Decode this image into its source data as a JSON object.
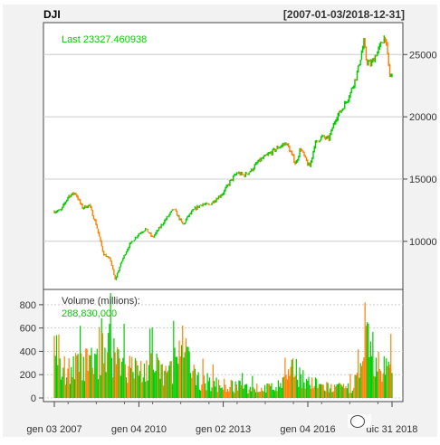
{
  "header": {
    "symbol": "DJI",
    "date_range": "[2007-01-03/2018-12-31]"
  },
  "colors": {
    "up": "#00cc00",
    "down": "#ff8000",
    "last_text": "#00cc00",
    "volume_value": "#00cc00",
    "grid": "#cccccc",
    "background": "#ffffff",
    "outer_background": "#f2f2f2"
  },
  "chart_data": [
    {
      "type": "line",
      "style": "candlestick",
      "title": "DJI",
      "subtitle": "[2007-01-03/2018-12-31]",
      "annotation": "Last 23327.460938",
      "x_tick_labels": [
        "gen 03 2007",
        "gen 04 2010",
        "gen 02 2013",
        "gen 04 2016",
        "dic 31 2018"
      ],
      "y_tick_labels": [
        "10000",
        "15000",
        "20000",
        "25000"
      ],
      "y_axis_position": "right",
      "ylim": [
        6500,
        27200
      ],
      "grid": true,
      "series": [
        {
          "x": [
            "2007-01",
            "2007-04",
            "2007-07",
            "2007-10",
            "2008-01",
            "2008-04",
            "2008-07",
            "2008-10",
            "2009-01",
            "2009-03",
            "2009-06",
            "2009-09",
            "2010-01",
            "2010-04",
            "2010-07",
            "2010-10",
            "2011-01",
            "2011-04",
            "2011-08",
            "2011-10",
            "2012-01",
            "2012-04",
            "2012-07",
            "2012-10",
            "2013-01",
            "2013-04",
            "2013-07",
            "2013-10",
            "2014-01",
            "2014-04",
            "2014-07",
            "2014-10",
            "2015-01",
            "2015-04",
            "2015-08",
            "2015-10",
            "2016-01",
            "2016-02",
            "2016-04",
            "2016-07",
            "2016-10",
            "2017-01",
            "2017-04",
            "2017-07",
            "2017-10",
            "2018-01",
            "2018-02",
            "2018-04",
            "2018-07",
            "2018-10",
            "2018-11",
            "2018-12"
          ],
          "values": [
            12400,
            12500,
            13600,
            13900,
            12700,
            12900,
            11300,
            9000,
            8500,
            6900,
            8500,
            9700,
            10600,
            11000,
            10300,
            11100,
            11900,
            12600,
            11300,
            12000,
            12600,
            13000,
            12900,
            13400,
            13900,
            14800,
            15500,
            15300,
            15700,
            16400,
            16800,
            17200,
            17600,
            17900,
            16200,
            17500,
            16200,
            16000,
            17800,
            18400,
            18200,
            19900,
            20700,
            21800,
            23400,
            26000,
            24500,
            24200,
            25300,
            26500,
            25000,
            23300
          ]
        }
      ]
    },
    {
      "type": "bar",
      "title": "Volume (millions):",
      "annotation": "288,830,000",
      "y_tick_labels": [
        "0",
        "200",
        "400",
        "600",
        "800"
      ],
      "y_axis_position": "left",
      "ylim": [
        0,
        900
      ],
      "grid": true,
      "series": [
        {
          "x": [
            "2007",
            "2007-07",
            "2008",
            "2008-07",
            "2008-10",
            "2009",
            "2009-07",
            "2010",
            "2010-07",
            "2011",
            "2011-08",
            "2012",
            "2012-07",
            "2013",
            "2013-07",
            "2014",
            "2014-07",
            "2015",
            "2015-08",
            "2016",
            "2016-07",
            "2017",
            "2017-07",
            "2018",
            "2018-02",
            "2018-07",
            "2018-12"
          ],
          "values": [
            280,
            300,
            330,
            380,
            600,
            520,
            330,
            280,
            320,
            240,
            500,
            200,
            160,
            130,
            120,
            100,
            100,
            120,
            300,
            160,
            120,
            100,
            100,
            300,
            600,
            330,
            289
          ]
        }
      ]
    }
  ]
}
